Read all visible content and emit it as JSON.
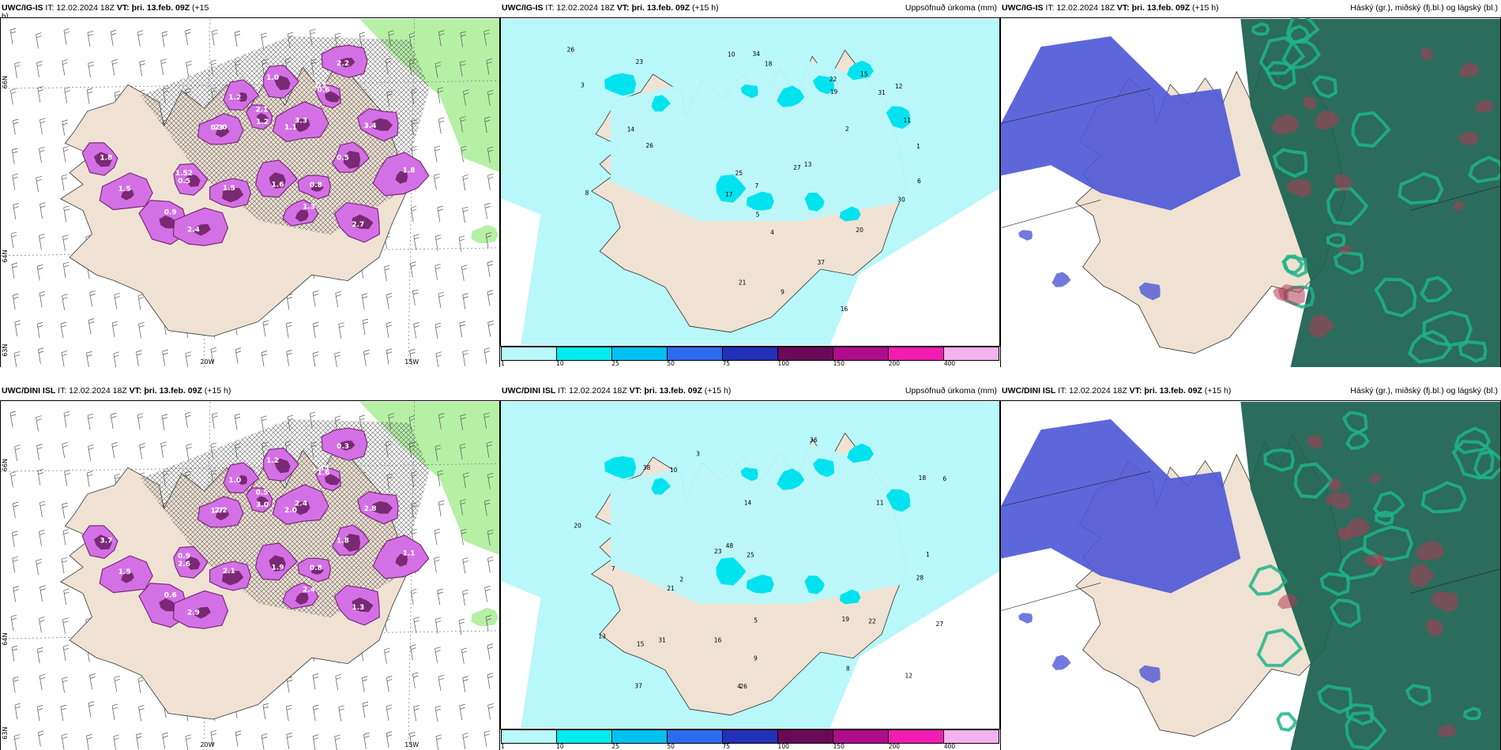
{
  "palette": {
    "land": "#efe2d3",
    "sea_light": "#b8f7fa",
    "sea_mid": "#00e3ef",
    "snow_dark": "#7a2a74",
    "snow_light": "#d470e6",
    "green": "#b5f0a5",
    "blue_cloud": "#4d57d6",
    "green_cloud": "#1fb488",
    "dark_teal": "#19604e",
    "red_cloud": "#b03a55"
  },
  "rows": [
    {
      "panels": [
        {
          "type": "snow",
          "head": {
            "model": "UWC/IG-IS",
            "it": "IT: 12.02.2024 18Z",
            "vt": "VT: þri. 13.feb. 09Z",
            "lead": "(+15",
            "right": ""
          },
          "lead2": "h)",
          "ax": {
            "lon1": "20W",
            "lon2": "15W",
            "lat1": "66N",
            "lat2": "64N",
            "lat3": "63N"
          },
          "values": [
            "1.3",
            "3.3",
            "1.2",
            "2.0",
            "0.5",
            "1.5",
            "1.6",
            "0.8",
            "0.5",
            "3.4",
            "1.8",
            "2.7",
            "1.3",
            "0.9",
            "1.5",
            "1.8",
            "2.4",
            "1.0",
            "2.2",
            "1.2",
            "0.6",
            "1.1",
            "2.1",
            "0.3",
            "1.52"
          ]
        },
        {
          "type": "precip",
          "head": {
            "model": "UWC/IG-IS",
            "it": "IT: 12.02.2024 18Z",
            "vt": "VT: þri. 13.feb. 09Z",
            "lead": "(+15 h)",
            "right": "Uppsöfnuð úrkoma (mm)"
          },
          "values": [
            "26",
            "31",
            "37",
            "17",
            "19",
            "30",
            "27",
            "22",
            "25",
            "34",
            "26",
            "20",
            "15",
            "12",
            "18",
            "21",
            "23",
            "16",
            "14",
            "10",
            "13",
            "9",
            "7",
            "8",
            "6",
            "5",
            "4",
            "3",
            "2",
            "1",
            "11"
          ],
          "colorbar": {
            "colors": [
              "#b8f7fa",
              "#00ecf0",
              "#00c0f0",
              "#2d6cef",
              "#2231b8",
              "#6a0958",
              "#b00d8a",
              "#f21cb3",
              "#f3b1ee"
            ],
            "labels": [
              "1",
              "10",
              "25",
              "50",
              "75",
              "100",
              "150",
              "200",
              "400"
            ]
          }
        },
        {
          "type": "cloud",
          "head": {
            "model": "UWC/IG-IS",
            "it": "IT: 12.02.2024 18Z",
            "vt": "VT: þri. 13.feb. 09Z",
            "lead": "(+15 h)",
            "right": "Háský (gr.), miðský (fj.bl.) og lágský (bl.)"
          }
        }
      ]
    },
    {
      "panels": [
        {
          "type": "snow",
          "head": {
            "model": "UWC/DINI ISL",
            "it": "IT: 12.02.2024 18Z",
            "vt": "VT: þri. 13.feb. 09Z",
            "lead": "(+15 h)",
            "right": ""
          },
          "lead2": "",
          "ax": {
            "lon1": "20W",
            "lon2": "15W",
            "lat1": "66N",
            "lat2": "64N",
            "lat3": "63N"
          },
          "values": [
            "1.45",
            "2.4",
            "3.0",
            "2.2",
            "2.6",
            "2.1",
            "1.9",
            "0.8",
            "1.8",
            "2.8",
            "1.1",
            "1.3",
            "2.4",
            "0.6",
            "1.5",
            "3.7",
            "2.9",
            "1.2",
            "0.3",
            "1.0",
            "1.6",
            "2.0",
            "0.5",
            "1.7",
            "0.9"
          ]
        },
        {
          "type": "precip",
          "head": {
            "model": "UWC/DINI ISL",
            "it": "IT: 12.02.2024 18Z",
            "vt": "VT: þri. 13.feb. 09Z",
            "lead": "(+15 h)",
            "right": "Uppsöfnuð úrkoma (mm)"
          },
          "values": [
            "28",
            "37",
            "48",
            "38",
            "22",
            "25",
            "31",
            "15",
            "18",
            "21",
            "36",
            "27",
            "20",
            "13",
            "12",
            "19",
            "23",
            "26",
            "14",
            "10",
            "9",
            "8",
            "7",
            "6",
            "5",
            "4",
            "3",
            "2",
            "1",
            "11",
            "16"
          ],
          "colorbar": {
            "colors": [
              "#b8f7fa",
              "#00ecf0",
              "#00c0f0",
              "#2d6cef",
              "#2231b8",
              "#6a0958",
              "#b00d8a",
              "#f21cb3",
              "#f3b1ee"
            ],
            "labels": [
              "1",
              "10",
              "25",
              "50",
              "75",
              "100",
              "150",
              "200",
              "400"
            ]
          }
        },
        {
          "type": "cloud",
          "head": {
            "model": "UWC/DINI ISL",
            "it": "IT: 12.02.2024 18Z",
            "vt": "VT: þri. 13.feb. 09Z",
            "lead": "(+15 h)",
            "right": "Háský (gr.), miðský (fj.bl.) og lágský (bl.)"
          }
        }
      ]
    }
  ]
}
